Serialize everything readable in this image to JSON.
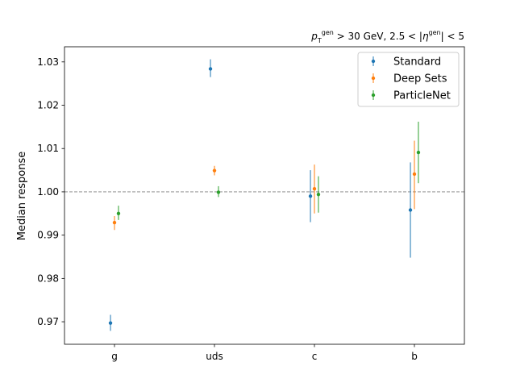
{
  "chart_data": {
    "type": "scatter",
    "title_html": "p_T^gen > 30 GeV, 2.5 < |η^gen| < 5",
    "title_parts": {
      "p": "p",
      "T": "T",
      "gen1": "gen",
      "gt30": " > 30 GeV, 2.5 < |",
      "eta": "η",
      "gen2": "gen",
      "lt5": "| < 5"
    },
    "xlabel": "",
    "ylabel": "Median response",
    "categories": [
      "g",
      "uds",
      "c",
      "b"
    ],
    "ylim": [
      0.9648,
      1.0335
    ],
    "yticks": [
      0.97,
      0.98,
      0.99,
      1.0,
      1.01,
      1.02,
      1.03
    ],
    "ytick_labels": [
      "0.97",
      "0.98",
      "0.99",
      "1.00",
      "1.01",
      "1.02",
      "1.03"
    ],
    "reference_line": 1.0,
    "legend_position": "top-right",
    "series": [
      {
        "name": "Standard",
        "color": "#1f77b4",
        "offset": -0.04,
        "values": [
          0.9697,
          1.0284,
          0.999,
          0.9958
        ],
        "err_low": [
          0.9679,
          1.0265,
          0.993,
          0.9848
        ],
        "err_high": [
          0.9716,
          1.0306,
          1.005,
          1.0068
        ]
      },
      {
        "name": "Deep Sets",
        "color": "#ff7f0e",
        "offset": 0.0,
        "values": [
          0.9929,
          1.0049,
          1.0007,
          1.0041
        ],
        "err_low": [
          0.9912,
          1.0038,
          0.995,
          0.996
        ],
        "err_high": [
          0.9944,
          1.006,
          1.0063,
          1.0118
        ]
      },
      {
        "name": "ParticleNet",
        "color": "#2ca02c",
        "offset": 0.04,
        "values": [
          0.995,
          0.9999,
          0.9994,
          1.0091
        ],
        "err_low": [
          0.9935,
          0.9988,
          0.9952,
          1.002
        ],
        "err_high": [
          0.9968,
          1.0013,
          1.0036,
          1.0162
        ]
      }
    ]
  }
}
